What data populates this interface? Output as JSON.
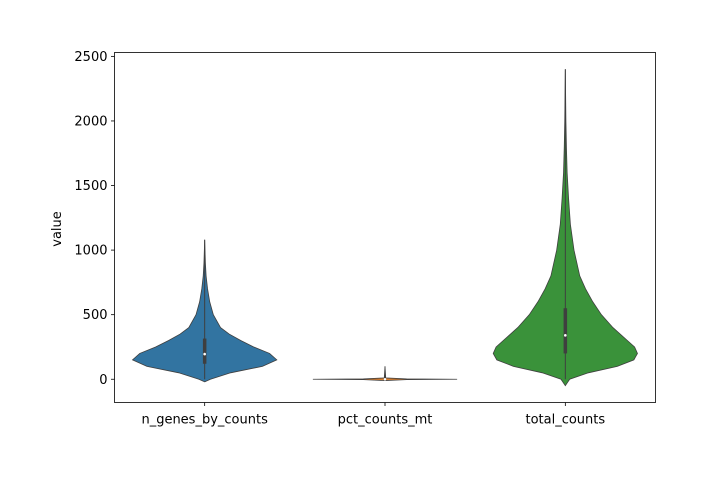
{
  "chart_data": {
    "type": "violin",
    "title": "",
    "xlabel": "",
    "ylabel": "value",
    "ylim": [
      -180,
      2530
    ],
    "yticks": [
      0,
      500,
      1000,
      1500,
      2000,
      2500
    ],
    "ytick_labels": [
      "0",
      "500",
      "1000",
      "1500",
      "2000",
      "2500"
    ],
    "grid": false,
    "legend": "none",
    "categories": [
      "n_genes_by_counts",
      "pct_counts_mt",
      "total_counts"
    ],
    "colors": [
      "#3274a1",
      "#e1812c",
      "#3a923a"
    ],
    "series": [
      {
        "color": "#3274a1",
        "min": -20,
        "max": 1080,
        "q1": 120,
        "median": 195,
        "q3": 315,
        "whisker_low": 0,
        "whisker_high": 1080,
        "density": [
          [
            -20,
            0.0
          ],
          [
            0,
            0.08
          ],
          [
            50,
            0.36
          ],
          [
            100,
            0.8
          ],
          [
            150,
            1.0
          ],
          [
            200,
            0.9
          ],
          [
            250,
            0.68
          ],
          [
            300,
            0.5
          ],
          [
            350,
            0.34
          ],
          [
            400,
            0.22
          ],
          [
            500,
            0.12
          ],
          [
            600,
            0.07
          ],
          [
            700,
            0.04
          ],
          [
            800,
            0.02
          ],
          [
            900,
            0.01
          ],
          [
            1080,
            0.0
          ]
        ]
      },
      {
        "color": "#e1812c",
        "min": -10,
        "max": 100,
        "q1": 0,
        "median": 0,
        "q3": 0,
        "whisker_low": 0,
        "whisker_high": 100,
        "density": [
          [
            -10,
            0.0
          ],
          [
            -3,
            0.3
          ],
          [
            0,
            1.0
          ],
          [
            3,
            0.3
          ],
          [
            10,
            0.01
          ],
          [
            100,
            0.0
          ]
        ]
      },
      {
        "color": "#3a923a",
        "min": -50,
        "max": 2400,
        "q1": 200,
        "median": 340,
        "q3": 550,
        "whisker_low": 0,
        "whisker_high": 2400,
        "density": [
          [
            -50,
            0.0
          ],
          [
            0,
            0.06
          ],
          [
            50,
            0.32
          ],
          [
            100,
            0.72
          ],
          [
            150,
            0.95
          ],
          [
            200,
            1.0
          ],
          [
            250,
            0.96
          ],
          [
            300,
            0.86
          ],
          [
            350,
            0.76
          ],
          [
            400,
            0.66
          ],
          [
            450,
            0.58
          ],
          [
            500,
            0.5
          ],
          [
            600,
            0.38
          ],
          [
            700,
            0.28
          ],
          [
            800,
            0.2
          ],
          [
            1000,
            0.12
          ],
          [
            1200,
            0.07
          ],
          [
            1400,
            0.045
          ],
          [
            1600,
            0.025
          ],
          [
            1800,
            0.015
          ],
          [
            2000,
            0.008
          ],
          [
            2200,
            0.004
          ],
          [
            2400,
            0.0
          ]
        ]
      }
    ]
  }
}
